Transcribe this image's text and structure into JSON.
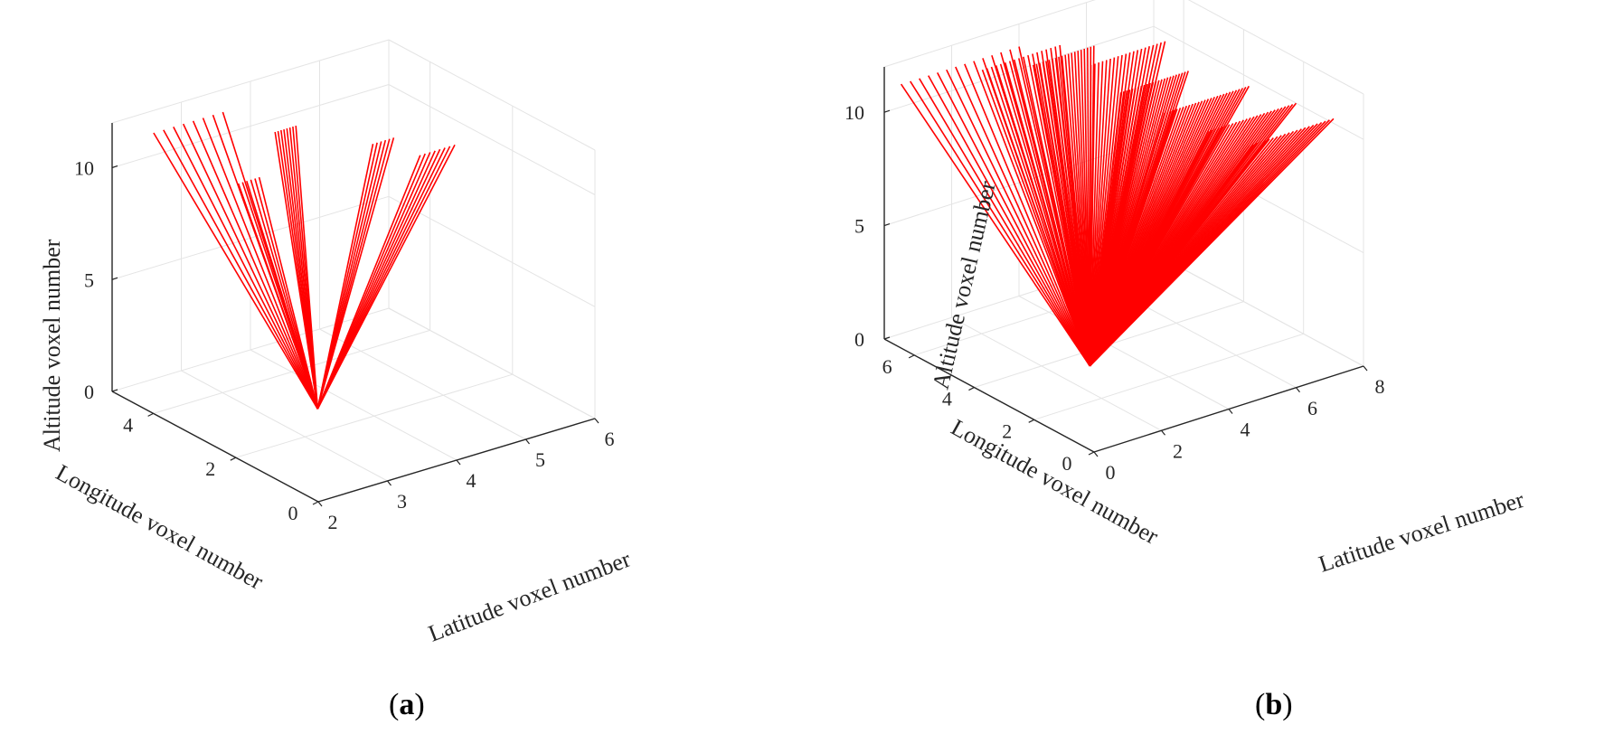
{
  "colors": {
    "ray": "#ff0000",
    "grid": "#e4e4e4",
    "axis": "#262626",
    "background": "#ffffff"
  },
  "chart_data": [
    {
      "id": "a",
      "panel_label": "a",
      "type": "line3d",
      "xlabel": "Latitude voxel number",
      "ylabel": "Longitude voxel number",
      "zlabel": "Altitude voxel number",
      "xlim": [
        2,
        6
      ],
      "ylim": [
        0,
        5
      ],
      "zlim": [
        0,
        12
      ],
      "xticks": [
        2,
        3,
        4,
        5,
        6
      ],
      "yticks": [
        0,
        2,
        4
      ],
      "zticks": [
        0,
        5,
        10
      ],
      "grid": true,
      "origin": [
        3.6,
        2.7,
        0
      ],
      "ray_groups": [
        {
          "count": 8,
          "start": [
            3.6,
            5.0,
            11.0
          ],
          "end": [
            2.6,
            5.0,
            11.0
          ]
        },
        {
          "count": 6,
          "start": [
            3.35,
            3.7,
            9.6
          ],
          "end": [
            3.05,
            3.7,
            9.6
          ]
        },
        {
          "count": 8,
          "start": [
            4.0,
            3.9,
            11.1
          ],
          "end": [
            3.7,
            3.9,
            11.1
          ]
        },
        {
          "count": 6,
          "start": [
            4.7,
            2.7,
            11.1
          ],
          "end": [
            4.4,
            2.7,
            11.1
          ]
        },
        {
          "count": 8,
          "start": [
            4.6,
            1.05,
            12.5
          ],
          "end": [
            4.1,
            1.05,
            12.5
          ]
        }
      ]
    },
    {
      "id": "b",
      "panel_label": "b",
      "type": "line3d",
      "xlabel": "Latitude voxel number",
      "ylabel": "Longitude voxel number",
      "zlabel": "Altitude voxel number",
      "xlim": [
        0,
        8
      ],
      "ylim": [
        0,
        7
      ],
      "zlim": [
        0,
        12
      ],
      "xticks": [
        0,
        2,
        4,
        6,
        8
      ],
      "yticks": [
        0,
        2,
        4,
        6
      ],
      "zticks": [
        0,
        5,
        10
      ],
      "grid": true,
      "origin": [
        2.9,
        3.4,
        0
      ],
      "ray_groups": [
        {
          "count": 14,
          "start": [
            4.0,
            7.0,
            11.0
          ],
          "end": [
            0.5,
            7.0,
            11.0
          ]
        },
        {
          "count": 18,
          "start": [
            4.5,
            6.2,
            11.4
          ],
          "end": [
            2.2,
            6.2,
            11.4
          ]
        },
        {
          "count": 20,
          "start": [
            4.8,
            5.4,
            11.8
          ],
          "end": [
            3.0,
            5.4,
            11.8
          ]
        },
        {
          "count": 20,
          "start": [
            6.2,
            4.6,
            11.9
          ],
          "end": [
            4.0,
            4.6,
            11.9
          ]
        },
        {
          "count": 24,
          "start": [
            6.0,
            3.6,
            11.4
          ],
          "end": [
            4.0,
            3.6,
            11.4
          ]
        },
        {
          "count": 28,
          "start": [
            7.0,
            2.7,
            10.9
          ],
          "end": [
            4.5,
            2.7,
            10.9
          ]
        },
        {
          "count": 26,
          "start": [
            7.6,
            1.8,
            10.5
          ],
          "end": [
            5.0,
            1.8,
            10.5
          ]
        },
        {
          "count": 22,
          "start": [
            8.0,
            1.0,
            10.2
          ],
          "end": [
            5.5,
            1.0,
            10.2
          ]
        }
      ]
    }
  ]
}
